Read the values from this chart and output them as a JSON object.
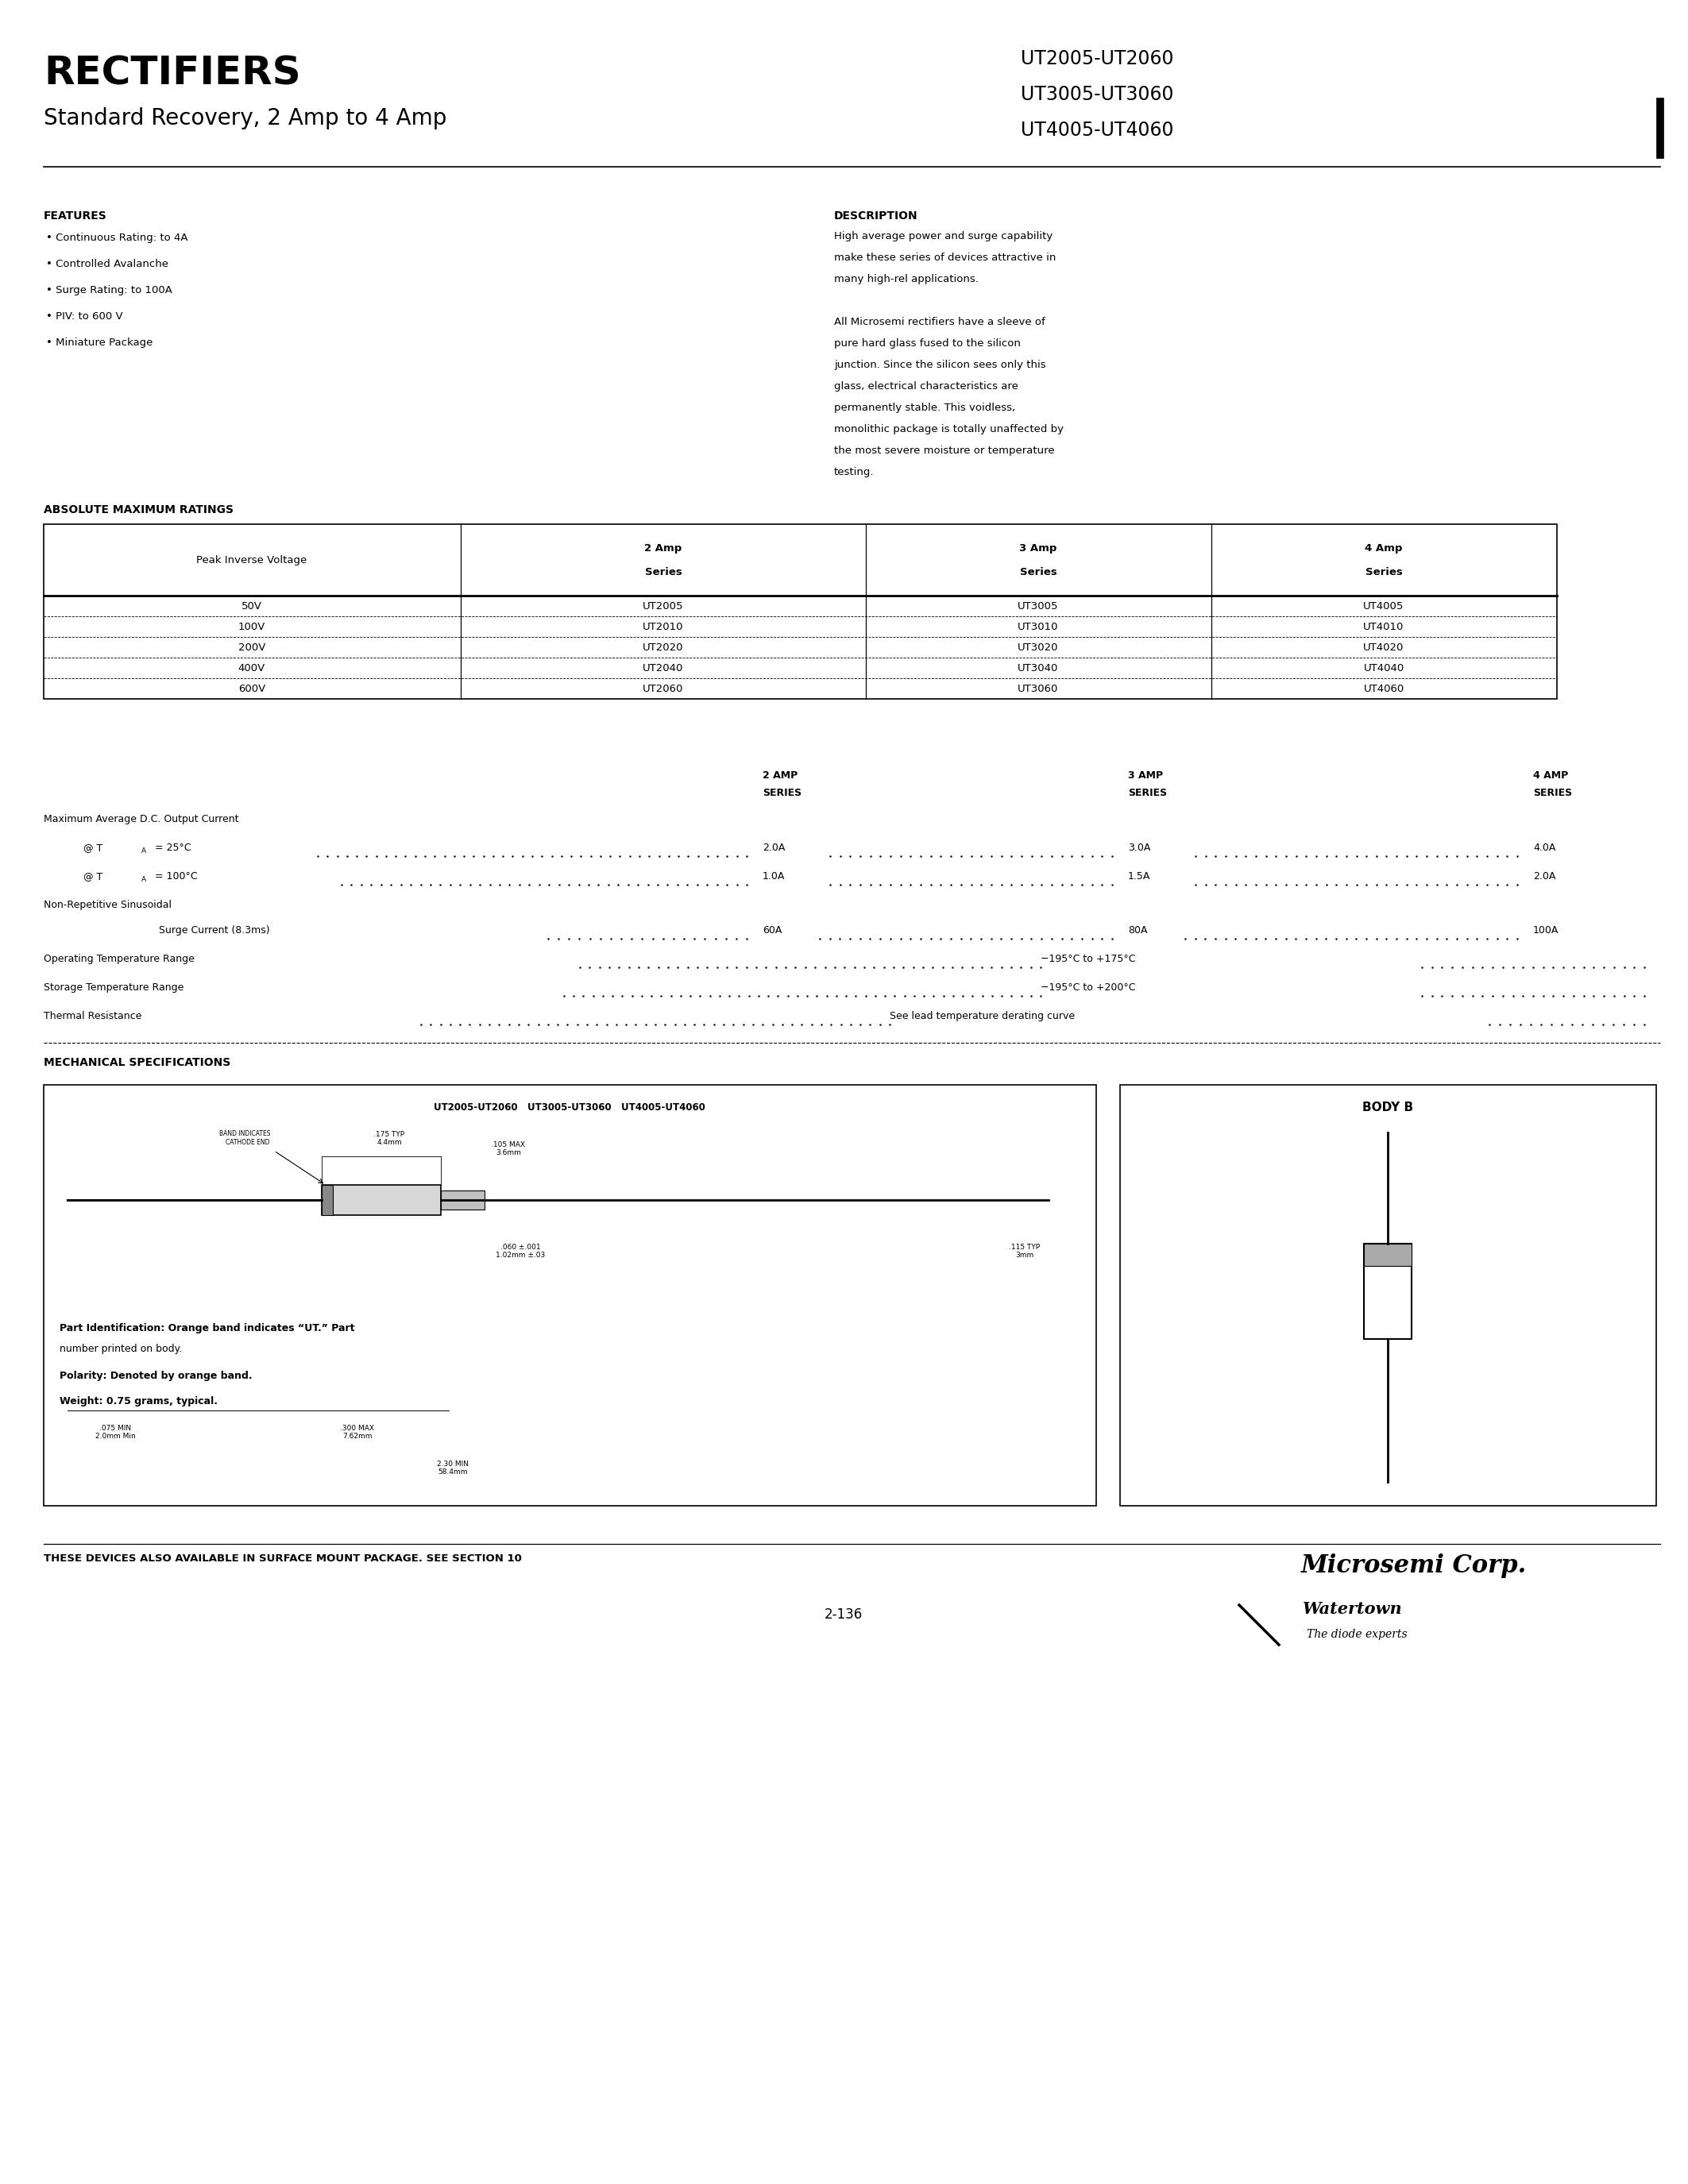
{
  "bg_color": "#ffffff",
  "title_rectifiers": "RECTIFIERS",
  "subtitle": "Standard Recovery, 2 Amp to 4 Amp",
  "part_numbers": [
    "UT2005-UT2060",
    "UT3005-UT3060",
    "UT4005-UT4060"
  ],
  "features_title": "FEATURES",
  "features": [
    "Continuous Rating: to 4A",
    "Controlled Avalanche",
    "Surge Rating: to 100A",
    "PIV: to 600 V",
    "Miniature Package"
  ],
  "description_title": "DESCRIPTION",
  "description_text": [
    "High average power and surge capability",
    "make these series of devices attractive in",
    "many high-rel applications.",
    "",
    "All Microsemi rectifiers have a sleeve of",
    "pure hard glass fused to the silicon",
    "junction. Since the silicon sees only this",
    "glass, electrical characteristics are",
    "permanently stable. This voidless,",
    "monolithic package is totally unaffected by",
    "the most severe moisture or temperature",
    "testing."
  ],
  "abs_max_title": "ABSOLUTE MAXIMUM RATINGS",
  "table_header": [
    "Peak Inverse Voltage",
    "2 Amp\nSeries",
    "3 Amp\nSeries",
    "4 Amp\nSeries"
  ],
  "table_rows": [
    [
      "50V",
      "UT2005",
      "UT3005",
      "UT4005"
    ],
    [
      "100V",
      "UT2010",
      "UT3010",
      "UT4010"
    ],
    [
      "200V",
      "UT2020",
      "UT3020",
      "UT4020"
    ],
    [
      "400V",
      "UT2040",
      "UT3040",
      "UT4040"
    ],
    [
      "600V",
      "UT2060",
      "UT3060",
      "UT4060"
    ]
  ],
  "mech_title": "MECHANICAL SPECIFICATIONS",
  "body_b_label": "BODY B",
  "footer_text": "THESE DEVICES ALSO AVAILABLE IN SURFACE MOUNT PACKAGE. SEE SECTION 10",
  "page_num": "2-136",
  "microsemi_text": "Microsemi Corp.",
  "watertown_text": "Watertown",
  "diode_text": "The diode experts"
}
